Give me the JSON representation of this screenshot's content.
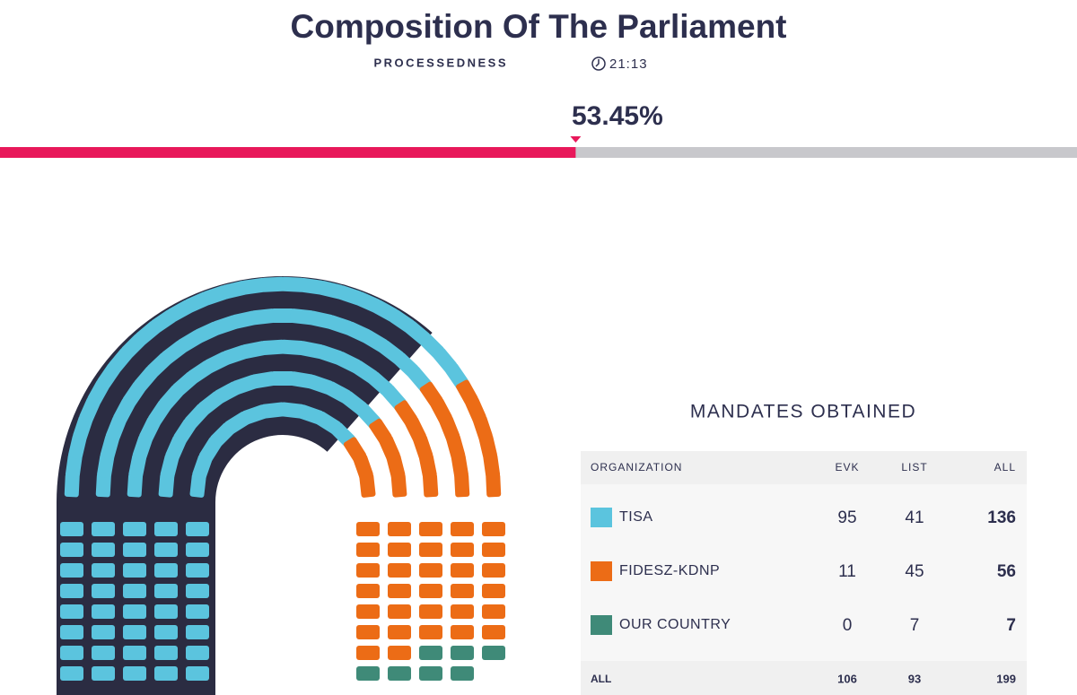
{
  "header": {
    "title": "Composition Of The Parliament",
    "subtitle": "PROCESSEDNESS",
    "time": "21:13"
  },
  "progress": {
    "value": 53.45,
    "label": "53.45%"
  },
  "chart_data": {
    "type": "parliament",
    "categories": [
      "TISA",
      "FIDESZ-KDNP",
      "OUR COUNTRY"
    ],
    "values": [
      136,
      56,
      7
    ],
    "colors": [
      "#5bc4de",
      "#ec6c16",
      "#3f8a78"
    ]
  },
  "table": {
    "title": "MANDATES OBTAINED",
    "columns": [
      "ORGANIZATION",
      "EVK",
      "LIST",
      "ALL"
    ],
    "rows": [
      [
        95,
        41
      ],
      [
        11,
        45
      ],
      [
        0,
        7
      ]
    ],
    "total_label": "ALL",
    "totals": [
      106,
      93,
      199
    ]
  }
}
